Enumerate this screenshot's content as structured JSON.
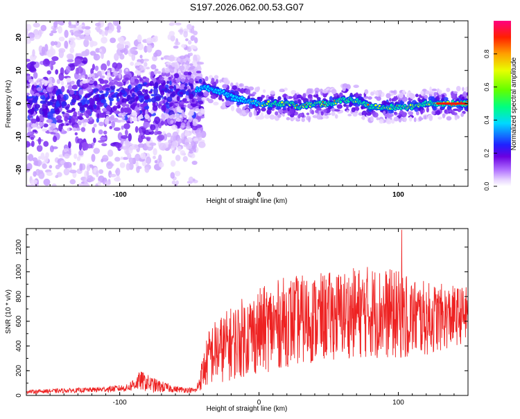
{
  "page_title": "S197.2026.062.00.53.G07",
  "chart_data": [
    {
      "type": "heatmap",
      "title": "S197.2026.062.00.53.G07",
      "xlabel": "Height of straight line (km)",
      "ylabel": "Frequency (Hz)",
      "xlim": [
        -167,
        150
      ],
      "ylim": [
        -25,
        25
      ],
      "x_ticks": [
        -100,
        0,
        100
      ],
      "y_ticks": [
        -20,
        -10,
        0,
        10,
        20
      ],
      "ridge": {
        "description_points_x": [
          -167,
          -140,
          -110,
          -90,
          -60,
          -45,
          -40,
          -30,
          -20,
          -10,
          0,
          10,
          20,
          30,
          40,
          50,
          60,
          70,
          80,
          90,
          100,
          110,
          120,
          130,
          150
        ],
        "description_points_y": [
          0,
          -1,
          2,
          3,
          4,
          4,
          5,
          4,
          2,
          1,
          0,
          0,
          0,
          -1,
          0,
          0,
          1,
          1,
          -1,
          -1,
          -1,
          -1,
          0,
          0,
          0
        ]
      },
      "colorbar": {
        "label": "Normalized spectral amplitude",
        "range": [
          0.0,
          1.0
        ],
        "ticks": [
          "0.0",
          "0.2",
          "0.4",
          "0.6",
          "0.8"
        ]
      }
    },
    {
      "type": "line",
      "title": "",
      "xlabel": "Height of straight line (km)",
      "ylabel": "SNR (10 * v/v)",
      "xlim": [
        -167,
        150
      ],
      "ylim": [
        0,
        1350
      ],
      "x_ticks": [
        -100,
        0,
        100
      ],
      "y_ticks": [
        0,
        200,
        400,
        600,
        800,
        1000,
        1200
      ],
      "color": "#ee2222",
      "envelope": {
        "x": [
          -167,
          -120,
          -95,
          -85,
          -75,
          -60,
          -45,
          -40,
          -35,
          -20,
          -10,
          0,
          10,
          20,
          40,
          60,
          80,
          100,
          120,
          140,
          150
        ],
        "y_mean": [
          30,
          45,
          60,
          120,
          80,
          50,
          40,
          200,
          330,
          420,
          480,
          520,
          560,
          600,
          620,
          660,
          680,
          650,
          620,
          640,
          660
        ],
        "y_spread": [
          15,
          20,
          30,
          80,
          60,
          25,
          20,
          150,
          250,
          300,
          330,
          350,
          360,
          370,
          360,
          360,
          380,
          360,
          300,
          250,
          220
        ]
      }
    }
  ]
}
